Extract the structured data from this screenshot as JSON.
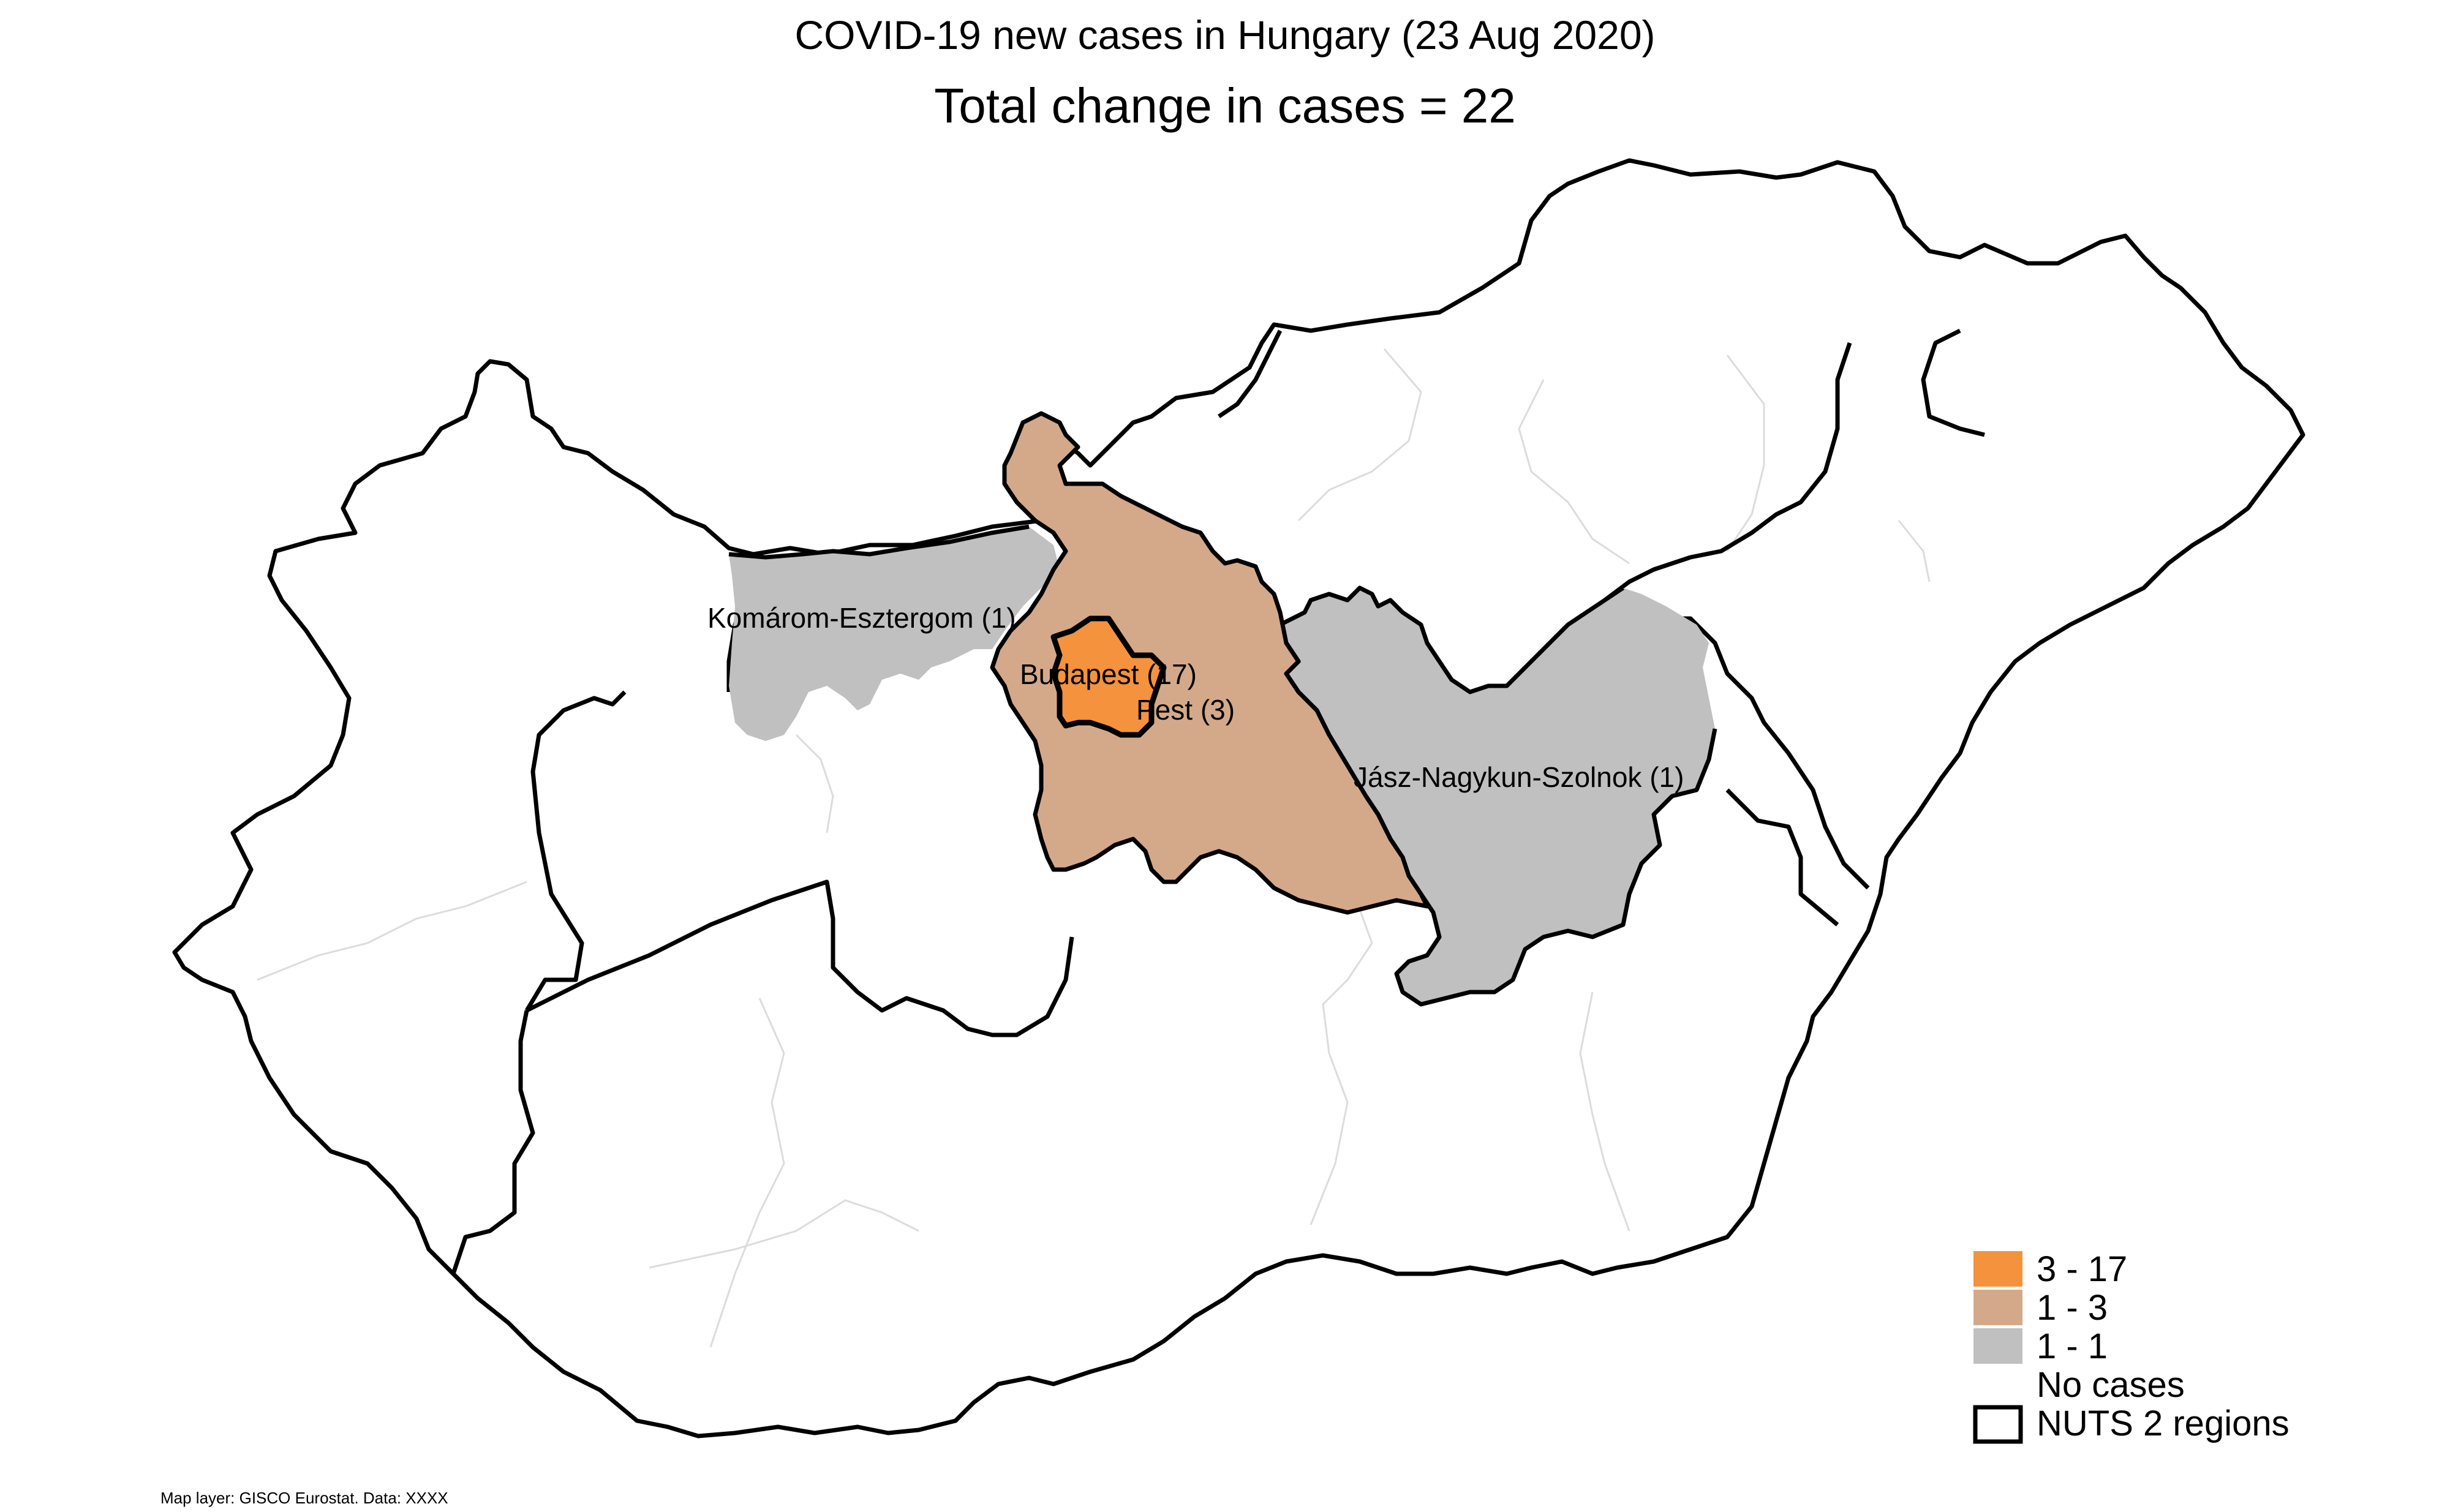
{
  "title": "COVID-19 new cases in Hungary (23 Aug 2020)",
  "subtitle": "Total change in cases  = 22",
  "regions": [
    {
      "name": "Budapest",
      "label": "Budapest (17)",
      "value": 17,
      "class": "3 - 17"
    },
    {
      "name": "Pest",
      "label": "Pest (3)",
      "value": 3,
      "class": "1 - 3"
    },
    {
      "name": "Komárom-Esztergom",
      "label": "Komárom-Esztergom (1)",
      "value": 1,
      "class": "1 - 1"
    },
    {
      "name": "Jász-Nagykun-Szolnok",
      "label": "Jász-Nagykun-Szolnok (1)",
      "value": 1,
      "class": "1 - 1"
    }
  ],
  "colors": {
    "high": "#f4923e",
    "mid": "#d4a98a",
    "low": "#c0c0c0",
    "none": "#ffffff",
    "border": "#000000",
    "inner_border": "#dcdcdc"
  },
  "legend": {
    "items": [
      {
        "label": "3 - 17",
        "color": "#f4923e"
      },
      {
        "label": "1 - 3",
        "color": "#d4a98a"
      },
      {
        "label": "1 - 1",
        "color": "#c0c0c0"
      },
      {
        "label": "No cases",
        "color": "#ffffff"
      }
    ],
    "nuts_label": "NUTS 2 regions"
  },
  "footer": "Map layer: GISCO Eurostat. Data: XXXX"
}
